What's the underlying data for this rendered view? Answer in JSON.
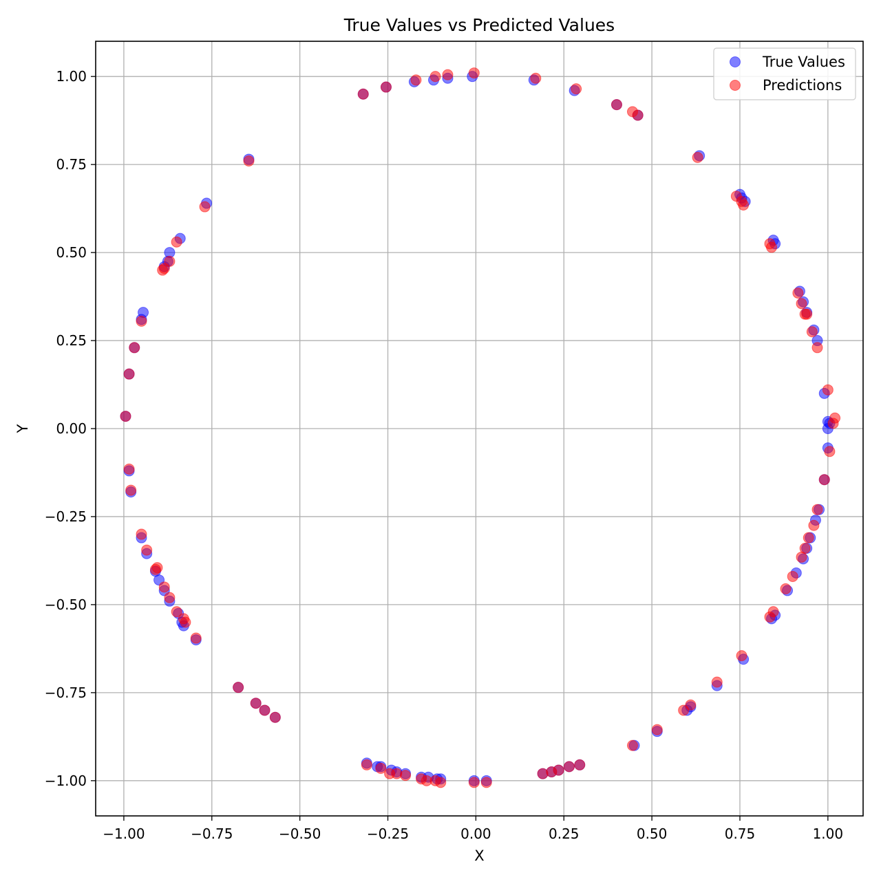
{
  "chart_data": {
    "type": "scatter",
    "title": "True Values vs Predicted Values",
    "xlabel": "X",
    "ylabel": "Y",
    "xlim": [
      -1.08,
      1.1
    ],
    "ylim": [
      -1.1,
      1.1
    ],
    "grid": true,
    "legend_position": "top-right",
    "xticks": [
      {
        "value": -1.0,
        "label": "−1.00"
      },
      {
        "value": -0.75,
        "label": "−0.75"
      },
      {
        "value": -0.5,
        "label": "−0.50"
      },
      {
        "value": -0.25,
        "label": "−0.25"
      },
      {
        "value": 0.0,
        "label": "0.00"
      },
      {
        "value": 0.25,
        "label": "0.25"
      },
      {
        "value": 0.5,
        "label": "0.50"
      },
      {
        "value": 0.75,
        "label": "0.75"
      },
      {
        "value": 1.0,
        "label": "1.00"
      }
    ],
    "yticks": [
      {
        "value": 1.0,
        "label": "1.00"
      },
      {
        "value": 0.75,
        "label": "0.75"
      },
      {
        "value": 0.5,
        "label": "0.50"
      },
      {
        "value": 0.25,
        "label": "0.25"
      },
      {
        "value": 0.0,
        "label": "0.00"
      },
      {
        "value": -0.25,
        "label": "−0.25"
      },
      {
        "value": -0.5,
        "label": "−0.50"
      },
      {
        "value": -0.75,
        "label": "−0.75"
      },
      {
        "value": -1.0,
        "label": "−1.00"
      }
    ],
    "series": [
      {
        "name": "True Values",
        "color": "#0000ff",
        "x": [
          -0.32,
          -0.255,
          -0.175,
          -0.12,
          -0.08,
          -0.01,
          0.165,
          0.28,
          0.4,
          0.46,
          0.635,
          0.75,
          0.755,
          0.765,
          0.845,
          0.85,
          0.92,
          0.93,
          0.94,
          0.96,
          0.97,
          0.99,
          1.0,
          1.005,
          1.0,
          1.0,
          0.99,
          0.975,
          0.965,
          0.95,
          0.94,
          0.93,
          0.91,
          0.885,
          0.85,
          0.84,
          0.76,
          0.685,
          0.6,
          0.61,
          0.515,
          0.45,
          0.295,
          0.265,
          0.235,
          0.215,
          0.19,
          0.03,
          -0.005,
          -0.1,
          -0.11,
          -0.135,
          -0.155,
          -0.2,
          -0.225,
          -0.24,
          -0.27,
          -0.28,
          -0.31,
          -0.57,
          -0.6,
          -0.625,
          -0.675,
          -0.795,
          -0.83,
          -0.835,
          -0.845,
          -0.87,
          -0.885,
          -0.9,
          -0.91,
          -0.935,
          -0.95,
          -0.98,
          -0.985,
          -0.995,
          -0.985,
          -0.97,
          -0.945,
          -0.95,
          -0.885,
          -0.875,
          -0.87,
          -0.84,
          -0.765,
          -0.645
        ],
        "y": [
          0.95,
          0.97,
          0.985,
          0.99,
          0.995,
          1.0,
          0.99,
          0.96,
          0.92,
          0.89,
          0.775,
          0.665,
          0.655,
          0.645,
          0.535,
          0.525,
          0.39,
          0.36,
          0.33,
          0.28,
          0.25,
          0.1,
          0.02,
          0.015,
          0.0,
          -0.055,
          -0.145,
          -0.23,
          -0.26,
          -0.31,
          -0.34,
          -0.37,
          -0.41,
          -0.46,
          -0.53,
          -0.54,
          -0.655,
          -0.73,
          -0.8,
          -0.79,
          -0.86,
          -0.9,
          -0.955,
          -0.96,
          -0.97,
          -0.975,
          -0.98,
          -1.0,
          -1.0,
          -0.995,
          -0.995,
          -0.99,
          -0.99,
          -0.98,
          -0.975,
          -0.97,
          -0.96,
          -0.96,
          -0.95,
          -0.82,
          -0.8,
          -0.78,
          -0.735,
          -0.6,
          -0.56,
          -0.55,
          -0.525,
          -0.49,
          -0.46,
          -0.43,
          -0.405,
          -0.355,
          -0.31,
          -0.18,
          -0.12,
          0.035,
          0.155,
          0.23,
          0.33,
          0.31,
          0.46,
          0.475,
          0.5,
          0.54,
          0.64,
          0.765
        ]
      },
      {
        "name": "Predictions",
        "color": "#ff0000",
        "x": [
          -0.32,
          -0.255,
          -0.17,
          -0.115,
          -0.08,
          -0.005,
          0.17,
          0.285,
          0.4,
          0.445,
          0.46,
          0.63,
          0.74,
          0.755,
          0.76,
          0.835,
          0.84,
          0.915,
          0.925,
          0.935,
          0.94,
          0.955,
          0.97,
          1.0,
          1.02,
          1.015,
          1.005,
          0.99,
          0.97,
          0.96,
          0.945,
          0.935,
          0.925,
          0.9,
          0.88,
          0.845,
          0.835,
          0.755,
          0.685,
          0.61,
          0.59,
          0.515,
          0.445,
          0.295,
          0.265,
          0.235,
          0.215,
          0.19,
          0.03,
          -0.005,
          -0.1,
          -0.115,
          -0.14,
          -0.155,
          -0.2,
          -0.225,
          -0.245,
          -0.27,
          -0.31,
          -0.57,
          -0.6,
          -0.625,
          -0.675,
          -0.795,
          -0.825,
          -0.83,
          -0.85,
          -0.87,
          -0.885,
          -0.905,
          -0.91,
          -0.935,
          -0.95,
          -0.98,
          -0.985,
          -0.995,
          -0.985,
          -0.97,
          -0.95,
          -0.89,
          -0.885,
          -0.87,
          -0.85,
          -0.77,
          -0.645
        ],
        "y": [
          0.95,
          0.97,
          0.99,
          1.0,
          1.005,
          1.01,
          0.995,
          0.965,
          0.92,
          0.9,
          0.89,
          0.77,
          0.66,
          0.645,
          0.635,
          0.525,
          0.515,
          0.385,
          0.355,
          0.325,
          0.325,
          0.275,
          0.23,
          0.11,
          0.03,
          0.015,
          -0.065,
          -0.145,
          -0.23,
          -0.275,
          -0.31,
          -0.34,
          -0.365,
          -0.42,
          -0.455,
          -0.52,
          -0.535,
          -0.645,
          -0.72,
          -0.785,
          -0.8,
          -0.855,
          -0.9,
          -0.955,
          -0.96,
          -0.97,
          -0.975,
          -0.98,
          -1.005,
          -1.005,
          -1.005,
          -1.0,
          -1.0,
          -0.995,
          -0.985,
          -0.98,
          -0.98,
          -0.965,
          -0.955,
          -0.82,
          -0.8,
          -0.78,
          -0.735,
          -0.595,
          -0.55,
          -0.54,
          -0.52,
          -0.48,
          -0.45,
          -0.395,
          -0.4,
          -0.345,
          -0.3,
          -0.175,
          -0.115,
          0.035,
          0.155,
          0.23,
          0.305,
          0.45,
          0.455,
          0.475,
          0.53,
          0.63,
          0.76
        ]
      }
    ]
  }
}
